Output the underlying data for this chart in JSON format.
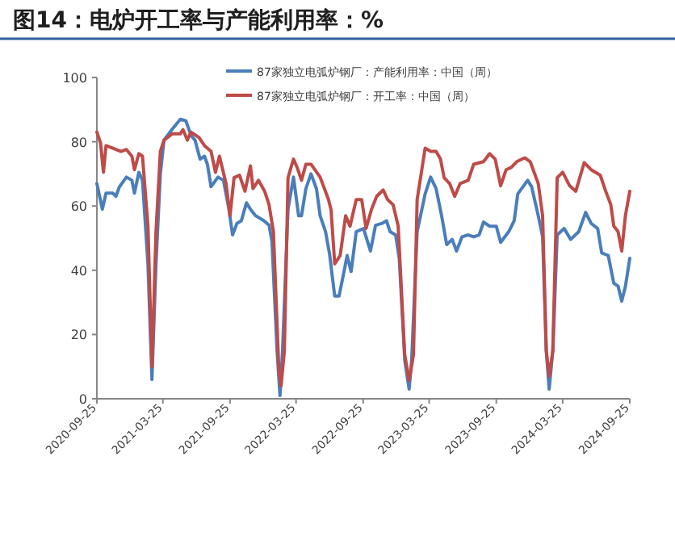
{
  "chart_data": {
    "type": "line",
    "title": "图14：电炉开工率与产能利用率：%",
    "xlim": [
      "2020-09-25",
      "2024-09-25"
    ],
    "xticks": [
      "2020-09-25",
      "2021-03-25",
      "2021-09-25",
      "2022-03-25",
      "2022-09-25",
      "2023-03-25",
      "2023-09-25",
      "2024-03-25",
      "2024-09-25"
    ],
    "ylim": [
      0,
      100
    ],
    "yticks": [
      0,
      20,
      40,
      60,
      80,
      100
    ],
    "grid": false,
    "legend": "top",
    "marker": "none",
    "line_style": "solid",
    "series": [
      {
        "name": "87家独立电弧炉钢厂：产能利用率：中国（周）",
        "color": "#4a7ebb",
        "x": [
          "2020-09-25",
          "2020-10-10",
          "2020-10-20",
          "2020-11-08",
          "2020-11-16",
          "2020-11-26",
          "2020-12-15",
          "2020-12-30",
          "2021-01-06",
          "2021-01-18",
          "2021-01-28",
          "2021-02-12",
          "2021-02-23",
          "2021-03-06",
          "2021-03-18",
          "2021-03-28",
          "2021-04-20",
          "2021-05-12",
          "2021-05-27",
          "2021-06-10",
          "2021-06-21",
          "2021-07-05",
          "2021-07-17",
          "2021-07-25",
          "2021-08-04",
          "2021-08-23",
          "2021-09-07",
          "2021-09-22",
          "2021-10-02",
          "2021-10-14",
          "2021-10-26",
          "2021-11-09",
          "2021-11-20",
          "2021-12-04",
          "2021-12-27",
          "2022-01-10",
          "2022-01-18",
          "2022-02-01",
          "2022-02-09",
          "2022-02-16",
          "2022-03-03",
          "2022-03-18",
          "2022-04-01",
          "2022-04-09",
          "2022-04-21",
          "2022-05-05",
          "2022-05-20",
          "2022-05-30",
          "2022-06-14",
          "2022-06-25",
          "2022-07-09",
          "2022-07-21",
          "2022-08-05",
          "2022-08-12",
          "2022-08-23",
          "2022-09-06",
          "2022-09-26",
          "2022-10-15",
          "2022-10-29",
          "2022-11-16",
          "2022-11-28",
          "2022-12-08",
          "2022-12-23",
          "2023-01-02",
          "2023-01-17",
          "2023-01-29",
          "2023-02-05",
          "2023-02-20",
          "2023-03-14",
          "2023-03-29",
          "2023-04-13",
          "2023-04-28",
          "2023-05-12",
          "2023-05-27",
          "2023-06-08",
          "2023-06-23",
          "2023-07-10",
          "2023-07-25",
          "2023-08-09",
          "2023-08-21",
          "2023-09-07",
          "2023-09-25",
          "2023-10-07",
          "2023-10-29",
          "2023-11-13",
          "2023-11-23",
          "2023-12-20",
          "2023-12-31",
          "2024-01-18",
          "2024-01-30",
          "2024-02-09",
          "2024-02-17",
          "2024-02-27",
          "2024-03-10",
          "2024-03-29",
          "2024-04-16",
          "2024-05-08",
          "2024-05-27",
          "2024-06-11",
          "2024-06-29",
          "2024-07-10",
          "2024-07-28",
          "2024-08-12",
          "2024-08-24",
          "2024-09-03",
          "2024-09-13",
          "2024-09-25"
        ],
        "values": [
          67,
          59,
          64,
          64,
          63,
          66,
          69,
          68,
          64,
          70.5,
          68,
          42,
          6,
          42,
          70,
          80.5,
          84,
          87,
          86.5,
          82,
          80.5,
          74.6,
          75.5,
          73,
          66,
          69,
          68,
          59,
          51,
          54.6,
          55.4,
          61,
          59,
          57,
          55.4,
          54,
          49,
          15,
          1,
          15,
          59,
          69,
          57,
          57,
          65.4,
          70,
          65.4,
          57,
          52,
          45,
          32,
          32,
          40.4,
          44.6,
          39.6,
          52,
          53,
          46,
          54,
          54.6,
          55.4,
          52,
          51,
          43.7,
          12,
          3,
          12,
          52,
          63.8,
          69,
          65.4,
          57,
          48,
          49.6,
          46,
          50.4,
          51,
          50.4,
          51,
          55,
          53.7,
          53.7,
          48.7,
          52,
          55.4,
          63.8,
          68,
          66,
          57,
          50.4,
          15,
          3,
          15,
          51,
          53,
          49.6,
          52,
          58,
          54.6,
          53,
          45.4,
          44.6,
          36,
          35,
          30.4,
          35,
          43.7
        ]
      },
      {
        "name": "87家独立电弧炉钢厂：开工率：中国（周）",
        "color": "#be4b48",
        "x": [
          "2020-09-25",
          "2020-10-05",
          "2020-10-13",
          "2020-10-20",
          "2020-11-08",
          "2020-11-30",
          "2020-12-15",
          "2020-12-30",
          "2021-01-06",
          "2021-01-18",
          "2021-01-28",
          "2021-02-12",
          "2021-02-23",
          "2021-03-06",
          "2021-03-18",
          "2021-03-28",
          "2021-04-20",
          "2021-05-12",
          "2021-05-19",
          "2021-05-31",
          "2021-06-10",
          "2021-07-02",
          "2021-07-17",
          "2021-08-04",
          "2021-08-16",
          "2021-08-27",
          "2021-09-14",
          "2021-09-25",
          "2021-10-06",
          "2021-10-21",
          "2021-11-05",
          "2021-11-20",
          "2021-11-27",
          "2021-12-12",
          "2021-12-29",
          "2022-01-10",
          "2022-01-22",
          "2022-02-06",
          "2022-02-12",
          "2022-02-21",
          "2022-03-03",
          "2022-03-18",
          "2022-03-28",
          "2022-04-09",
          "2022-04-21",
          "2022-05-05",
          "2022-05-30",
          "2022-06-22",
          "2022-06-29",
          "2022-07-09",
          "2022-07-24",
          "2022-08-08",
          "2022-08-20",
          "2022-09-06",
          "2022-09-21",
          "2022-10-03",
          "2022-10-18",
          "2022-11-01",
          "2022-11-19",
          "2022-12-01",
          "2022-12-16",
          "2022-12-30",
          "2023-01-17",
          "2023-01-29",
          "2023-02-10",
          "2023-02-20",
          "2023-03-14",
          "2023-03-29",
          "2023-04-13",
          "2023-04-25",
          "2023-05-05",
          "2023-05-20",
          "2023-06-03",
          "2023-06-18",
          "2023-07-10",
          "2023-07-25",
          "2023-08-21",
          "2023-09-07",
          "2023-09-22",
          "2023-10-07",
          "2023-10-22",
          "2023-11-05",
          "2023-11-20",
          "2023-12-12",
          "2023-12-27",
          "2024-01-18",
          "2024-01-30",
          "2024-02-09",
          "2024-02-17",
          "2024-02-27",
          "2024-03-10",
          "2024-03-25",
          "2024-04-13",
          "2024-04-30",
          "2024-05-23",
          "2024-06-11",
          "2024-07-06",
          "2024-07-21",
          "2024-08-04",
          "2024-08-12",
          "2024-08-24",
          "2024-09-03",
          "2024-09-13",
          "2024-09-25"
        ],
        "values": [
          83,
          79.6,
          70.5,
          78.8,
          78,
          77,
          77.6,
          75.5,
          71.3,
          76.3,
          75.5,
          53.8,
          10,
          52,
          77,
          80.5,
          82.5,
          82.5,
          83.8,
          80.5,
          83,
          81.3,
          78.8,
          77,
          70.5,
          75.5,
          67,
          57,
          68.8,
          69.6,
          64.6,
          72.5,
          65.4,
          68,
          64.6,
          60.4,
          52,
          8.7,
          4,
          15,
          68.8,
          74.6,
          72,
          68,
          73,
          73,
          69,
          62,
          58.8,
          42,
          44.6,
          57,
          53.7,
          62,
          62,
          53,
          59,
          63,
          65,
          62,
          60.4,
          53.8,
          13.7,
          5.7,
          13.7,
          62,
          78,
          77,
          77,
          74.6,
          68.8,
          67,
          63,
          67,
          68,
          73,
          73.8,
          76.3,
          74.6,
          66.3,
          71.3,
          72,
          73.8,
          75,
          73.8,
          67,
          57,
          15,
          7,
          15,
          68.8,
          70.5,
          66.3,
          64.6,
          73.5,
          71.3,
          69.6,
          64.6,
          60.4,
          53.8,
          52,
          46,
          57,
          64.6
        ]
      }
    ]
  }
}
